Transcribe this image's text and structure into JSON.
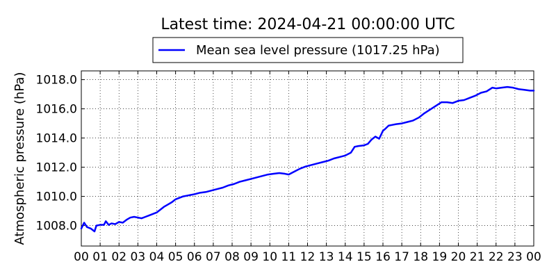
{
  "chart_data": {
    "type": "line",
    "title": "Latest time: 2024-04-21 00:00:00 UTC",
    "xlabel": "",
    "ylabel": "Atmospheric pressure (hPa)",
    "legend_position": "top-center",
    "grid": true,
    "xlim": [
      0,
      24
    ],
    "ylim": [
      1006.6,
      1018.6
    ],
    "x_ticks": [
      0,
      1,
      2,
      3,
      4,
      5,
      6,
      7,
      8,
      9,
      10,
      11,
      12,
      13,
      14,
      15,
      16,
      17,
      18,
      19,
      20,
      21,
      22,
      23,
      24
    ],
    "x_tick_labels": [
      "00",
      "01",
      "02",
      "03",
      "04",
      "05",
      "06",
      "07",
      "08",
      "09",
      "10",
      "11",
      "12",
      "13",
      "14",
      "15",
      "16",
      "17",
      "18",
      "19",
      "20",
      "21",
      "22",
      "23",
      "00"
    ],
    "y_ticks": [
      1008.0,
      1010.0,
      1012.0,
      1014.0,
      1016.0,
      1018.0
    ],
    "y_tick_labels": [
      "1008.0",
      "1010.0",
      "1012.0",
      "1014.0",
      "1016.0",
      "1018.0"
    ],
    "series": [
      {
        "name": "Mean sea level pressure (1017.25 hPa)",
        "color": "#0000ff",
        "x": [
          0,
          0.15,
          0.3,
          0.5,
          0.7,
          0.8,
          1.0,
          1.2,
          1.3,
          1.45,
          1.6,
          1.8,
          2.0,
          2.2,
          2.4,
          2.6,
          2.8,
          3.0,
          3.2,
          3.4,
          3.6,
          3.8,
          4.0,
          4.2,
          4.4,
          4.6,
          4.8,
          5.0,
          5.2,
          5.4,
          5.6,
          5.8,
          6.0,
          6.3,
          6.6,
          6.9,
          7.2,
          7.5,
          7.8,
          8.1,
          8.4,
          8.7,
          9.0,
          9.3,
          9.6,
          9.9,
          10.2,
          10.5,
          10.8,
          11.0,
          11.3,
          11.6,
          11.9,
          12.2,
          12.5,
          12.8,
          13.1,
          13.4,
          13.7,
          14.0,
          14.3,
          14.5,
          14.7,
          15.0,
          15.2,
          15.4,
          15.6,
          15.8,
          16.0,
          16.1,
          16.3,
          16.5,
          16.7,
          17.0,
          17.3,
          17.6,
          17.9,
          18.2,
          18.5,
          18.8,
          19.1,
          19.4,
          19.7,
          20.0,
          20.3,
          20.6,
          20.9,
          21.2,
          21.5,
          21.8,
          22.0,
          22.3,
          22.6,
          22.9,
          23.2,
          23.5,
          23.8,
          24.0
        ],
        "values": [
          1007.8,
          1008.2,
          1007.9,
          1007.8,
          1007.6,
          1008.0,
          1008.05,
          1008.05,
          1008.3,
          1008.05,
          1008.15,
          1008.1,
          1008.25,
          1008.2,
          1008.4,
          1008.55,
          1008.6,
          1008.55,
          1008.5,
          1008.6,
          1008.7,
          1008.8,
          1008.9,
          1009.1,
          1009.3,
          1009.45,
          1009.6,
          1009.8,
          1009.9,
          1010.0,
          1010.05,
          1010.1,
          1010.15,
          1010.25,
          1010.3,
          1010.4,
          1010.5,
          1010.6,
          1010.75,
          1010.85,
          1011.0,
          1011.1,
          1011.2,
          1011.3,
          1011.4,
          1011.5,
          1011.55,
          1011.6,
          1011.55,
          1011.5,
          1011.7,
          1011.9,
          1012.05,
          1012.15,
          1012.25,
          1012.35,
          1012.45,
          1012.6,
          1012.7,
          1012.8,
          1013.0,
          1013.4,
          1013.45,
          1013.5,
          1013.6,
          1013.9,
          1014.1,
          1013.95,
          1014.5,
          1014.6,
          1014.85,
          1014.9,
          1014.95,
          1015.0,
          1015.1,
          1015.2,
          1015.4,
          1015.7,
          1015.95,
          1016.2,
          1016.45,
          1016.45,
          1016.4,
          1016.55,
          1016.6,
          1016.75,
          1016.9,
          1017.1,
          1017.2,
          1017.45,
          1017.4,
          1017.45,
          1017.5,
          1017.45,
          1017.35,
          1017.3,
          1017.25,
          1017.25
        ]
      }
    ]
  }
}
